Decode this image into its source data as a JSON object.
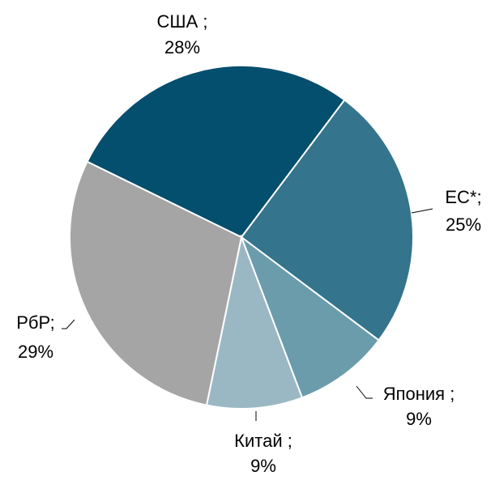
{
  "chart_data": {
    "type": "pie",
    "categories": [
      "США ;",
      "ЕС*;",
      "Япония ;",
      "Китай ;",
      "РбР;"
    ],
    "values": [
      28,
      25,
      9,
      9,
      29
    ],
    "value_labels": [
      "28%",
      "25%",
      "9%",
      "9%",
      "29%"
    ],
    "colors": [
      "#044e6e",
      "#34748c",
      "#6b9cac",
      "#9ab8c4",
      "#a5a5a5"
    ]
  }
}
